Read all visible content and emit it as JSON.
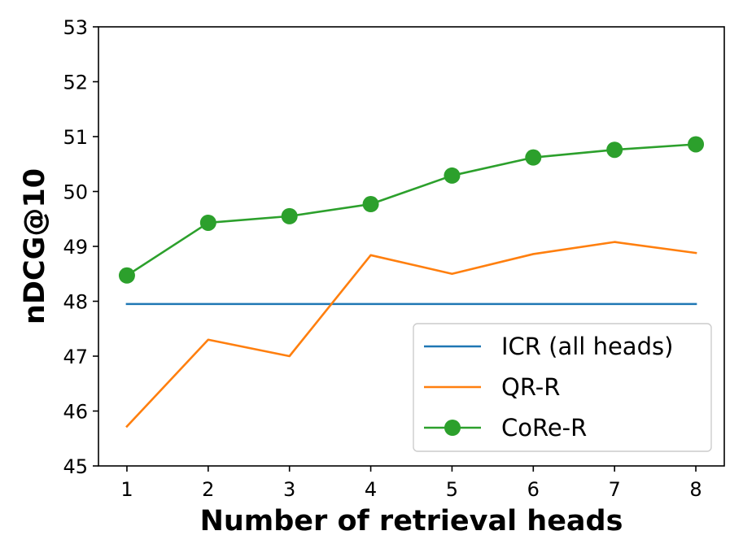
{
  "chart_data": {
    "type": "line",
    "xlabel": "Number of retrieval heads",
    "ylabel": "nDCG@10",
    "x": [
      1,
      2,
      3,
      4,
      5,
      6,
      7,
      8
    ],
    "xlim": [
      0.65,
      8.35
    ],
    "ylim": [
      45,
      53
    ],
    "xticks": [
      1,
      2,
      3,
      4,
      5,
      6,
      7,
      8
    ],
    "yticks": [
      45,
      46,
      47,
      48,
      49,
      50,
      51,
      52,
      53
    ],
    "grid": false,
    "legend_position": "bottom-right",
    "series": [
      {
        "name": "ICR (all heads)",
        "color": "#1f77b4",
        "marker": "none",
        "values": [
          47.95,
          47.95,
          47.95,
          47.95,
          47.95,
          47.95,
          47.95,
          47.95
        ]
      },
      {
        "name": "QR-R",
        "color": "#ff7f0e",
        "marker": "none",
        "values": [
          45.72,
          47.3,
          47.0,
          48.84,
          48.5,
          48.86,
          49.08,
          48.88
        ]
      },
      {
        "name": "CoRe-R",
        "color": "#2ca02c",
        "marker": "circle",
        "values": [
          48.47,
          49.43,
          49.55,
          49.77,
          50.29,
          50.62,
          50.76,
          50.86
        ]
      }
    ]
  }
}
